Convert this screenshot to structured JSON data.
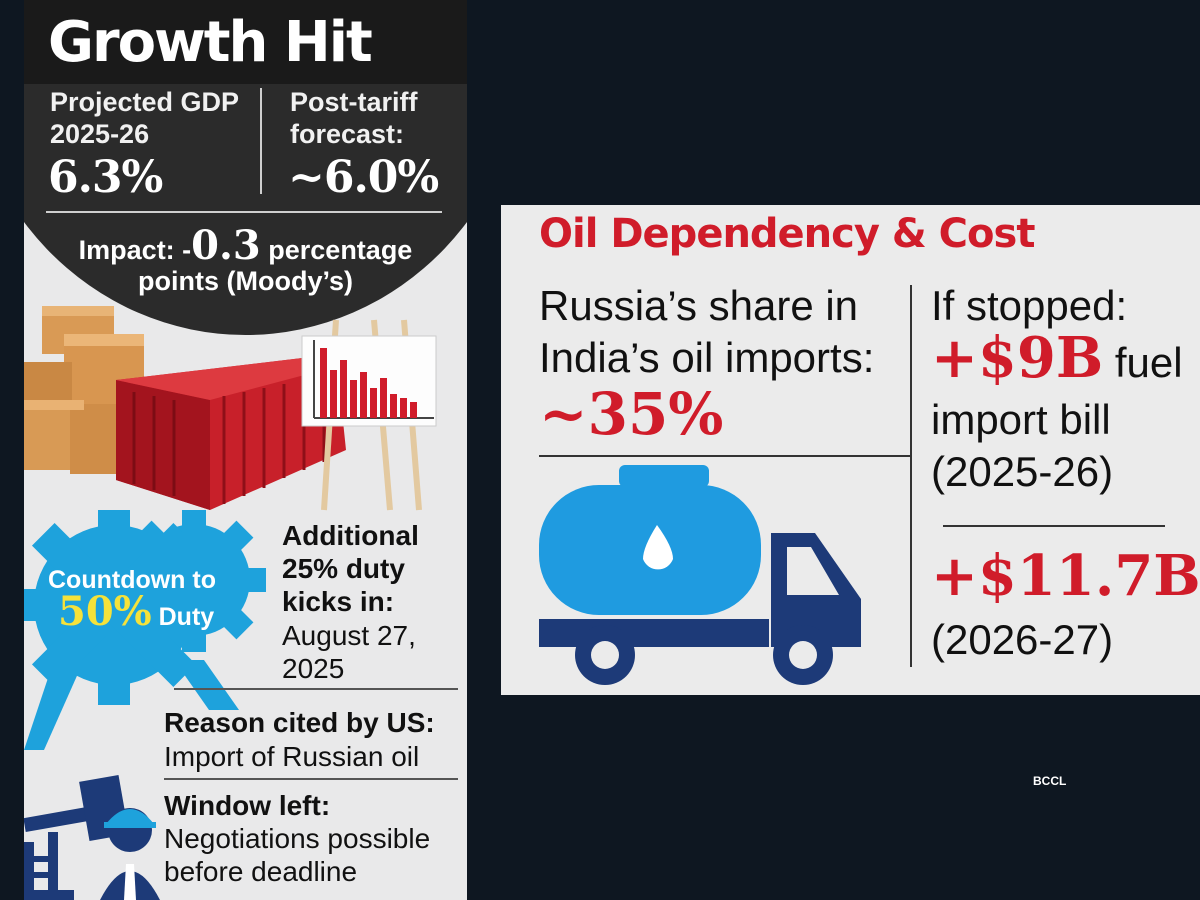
{
  "left_panel": {
    "title": "Growth Hit",
    "projected": {
      "label_line1": "Projected GDP",
      "label_line2": "2025-26",
      "value": "6.3%"
    },
    "post_tariff": {
      "label_line1": "Post-tariff",
      "label_line2": "forecast:",
      "value": "~6.0%"
    },
    "impact": {
      "prefix": "Impact: -",
      "value": "0.3",
      "suffix": " percentage",
      "line2": "points (Moody’s)"
    },
    "countdown": {
      "line1": "Countdown to",
      "pct": "50%",
      "duty": " Duty"
    },
    "additional": {
      "bold_line1": "Additional",
      "bold_line2": "25% duty",
      "bold_line3": "kicks in:",
      "date_line1": "August 27,",
      "date_line2": "2025"
    },
    "reason": {
      "heading": "Reason cited by US:",
      "text": "Import of Russian oil"
    },
    "window": {
      "heading": "Window left:",
      "text_line1": "Negotiations possible",
      "text_line2": "before deadline"
    }
  },
  "right_panel": {
    "title": "Oil Dependency & Cost",
    "share": {
      "line1": "Russia’s share in",
      "line2": "India’s oil imports:",
      "value": "~35%"
    },
    "if_stopped": {
      "label": "If stopped:",
      "value": "+$9B",
      "suffix": " fuel",
      "line2": "import bill",
      "line3": "(2025-26)"
    },
    "next_year": {
      "value": "+$11.7B",
      "period": "(2026-27)"
    }
  },
  "credit": "BCCL",
  "colors": {
    "accent_red": "#d01c2a",
    "truck_blue": "#1f9be0",
    "truck_navy": "#1d3a78",
    "gear_blue": "#1ea2dc",
    "container_red": "#c8202a"
  }
}
